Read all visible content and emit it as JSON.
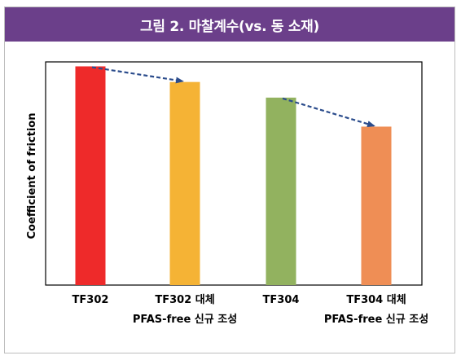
{
  "header": {
    "title": "그림 2. 마찰계수(vs. 동 소재)"
  },
  "chart_data": {
    "type": "bar",
    "title": "그림 2. 마찰계수(vs. 동 소재)",
    "xlabel": "",
    "ylabel": "Coefficient of friction",
    "ylim": [
      0,
      1.0
    ],
    "categories": [
      "TF302",
      "TF302 대체",
      "TF304",
      "TF304 대체"
    ],
    "values": [
      0.98,
      0.91,
      0.84,
      0.71
    ],
    "bar_colors": [
      "#ee2a2a",
      "#f5b335",
      "#92b25f",
      "#ef8e55"
    ],
    "axis_ticks_shown": false,
    "grid": false,
    "legend": "none",
    "annotations": [
      {
        "text": "PFAS-free 신규 조성",
        "under_category": "TF302 대체"
      },
      {
        "text": "PFAS-free 신규 조성",
        "under_category": "TF304 대체"
      }
    ],
    "arrows": [
      {
        "from": "TF302",
        "to": "TF302 대체",
        "style": "dashed",
        "color": "#2b4c8c"
      },
      {
        "from": "TF304",
        "to": "TF304 대체",
        "style": "dashed",
        "color": "#2b4c8c"
      }
    ]
  }
}
